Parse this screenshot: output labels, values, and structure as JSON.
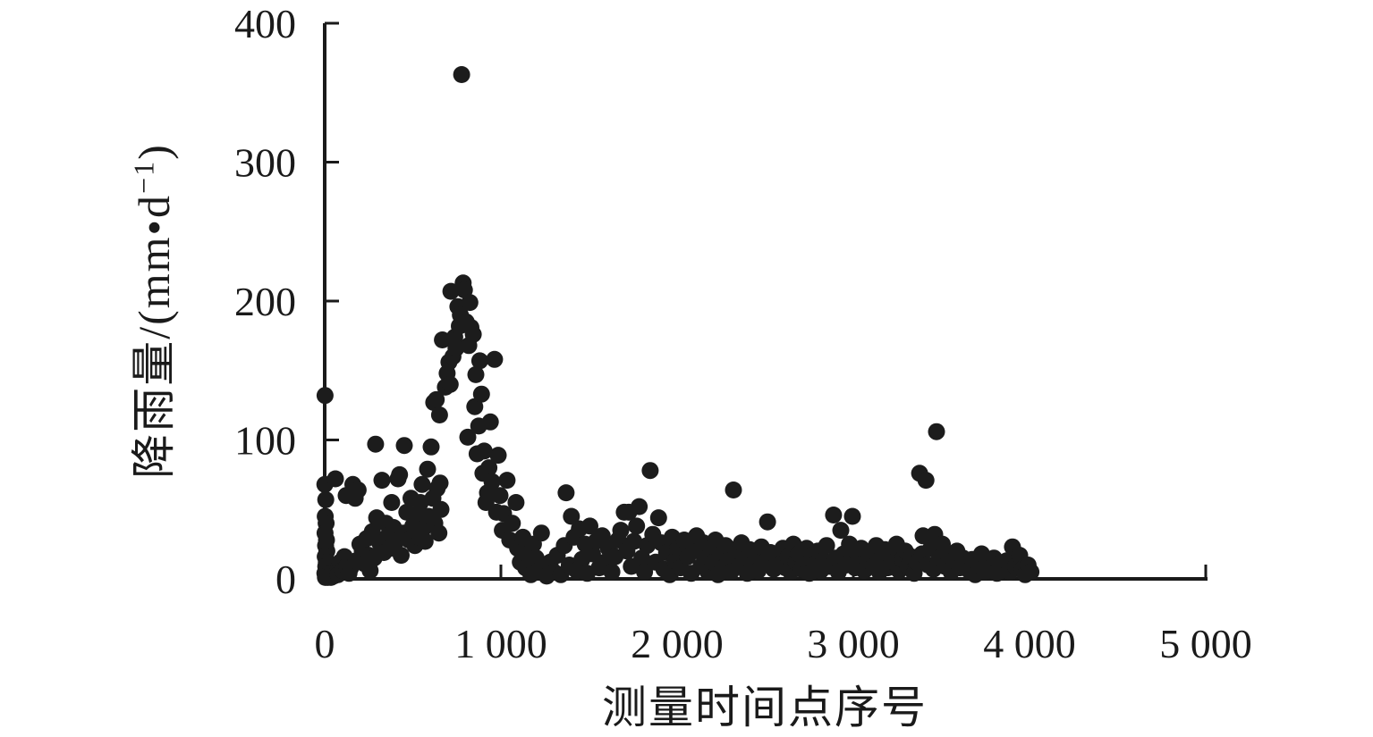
{
  "figure": {
    "background_color": "#ffffff",
    "axis_color": "#1a1a1a",
    "text_color": "#1a1a1a"
  },
  "chart_data": {
    "type": "scatter",
    "title": "",
    "xlabel": "测量时间点序号",
    "ylabel": "降雨量/(mm•d−1)",
    "ylabel_prefix": "降雨量/(mm•d",
    "ylabel_superscript": "−1",
    "ylabel_suffix": ")",
    "xlim": [
      0,
      5000
    ],
    "ylim": [
      0,
      400
    ],
    "grid": false,
    "legend_position": "none",
    "marker": {
      "shape": "circle",
      "radius_px": 9.5,
      "color": "#1c1c1c"
    },
    "x_ticks": [
      {
        "value": 0,
        "label": "0"
      },
      {
        "value": 1000,
        "label": "1 000"
      },
      {
        "value": 2000,
        "label": "2 000"
      },
      {
        "value": 3000,
        "label": "3 000"
      },
      {
        "value": 4000,
        "label": "4 000"
      },
      {
        "value": 5000,
        "label": "5 000"
      }
    ],
    "y_ticks": [
      {
        "value": 0,
        "label": "0"
      },
      {
        "value": 100,
        "label": "100"
      },
      {
        "value": 200,
        "label": "200"
      },
      {
        "value": 300,
        "label": "300"
      },
      {
        "value": 400,
        "label": "400"
      }
    ],
    "series": [
      {
        "name": "降雨量",
        "points": [
          [
            2,
            132
          ],
          [
            1,
            68
          ],
          [
            6,
            57
          ],
          [
            3,
            45
          ],
          [
            8,
            40
          ],
          [
            2,
            33
          ],
          [
            10,
            28
          ],
          [
            5,
            24
          ],
          [
            12,
            20
          ],
          [
            3,
            16
          ],
          [
            9,
            12
          ],
          [
            6,
            9
          ],
          [
            14,
            6
          ],
          [
            1,
            4
          ],
          [
            11,
            2
          ],
          [
            4,
            1
          ],
          [
            18,
            1
          ],
          [
            22,
            3
          ],
          [
            28,
            2
          ],
          [
            35,
            1
          ],
          [
            42,
            4
          ],
          [
            50,
            2
          ],
          [
            61,
            72
          ],
          [
            75,
            3
          ],
          [
            88,
            12
          ],
          [
            100,
            6
          ],
          [
            112,
            16
          ],
          [
            122,
            60
          ],
          [
            125,
            9
          ],
          [
            138,
            4
          ],
          [
            147,
            8
          ],
          [
            160,
            68
          ],
          [
            173,
            58
          ],
          [
            178,
            13
          ],
          [
            190,
            64
          ],
          [
            200,
            25
          ],
          [
            213,
            20
          ],
          [
            225,
            11
          ],
          [
            238,
            29
          ],
          [
            250,
            17
          ],
          [
            258,
            6
          ],
          [
            270,
            34
          ],
          [
            280,
            15
          ],
          [
            289,
            97
          ],
          [
            295,
            44
          ],
          [
            312,
            26
          ],
          [
            325,
            71
          ],
          [
            336,
            19
          ],
          [
            348,
            40
          ],
          [
            360,
            31
          ],
          [
            372,
            22
          ],
          [
            380,
            55
          ],
          [
            391,
            37
          ],
          [
            404,
            27
          ],
          [
            416,
            72
          ],
          [
            425,
            75
          ],
          [
            434,
            17
          ],
          [
            448,
            33
          ],
          [
            452,
            96
          ],
          [
            466,
            48
          ],
          [
            478,
            28
          ],
          [
            490,
            58
          ],
          [
            500,
            38
          ],
          [
            512,
            24
          ],
          [
            524,
            46
          ],
          [
            536,
            30
          ],
          [
            543,
            55
          ],
          [
            553,
            68
          ],
          [
            558,
            36
          ],
          [
            570,
            27
          ],
          [
            584,
            79
          ],
          [
            590,
            45
          ],
          [
            604,
            95
          ],
          [
            614,
            58
          ],
          [
            625,
            40
          ],
          [
            638,
            65
          ],
          [
            648,
            33
          ],
          [
            655,
            69
          ],
          [
            660,
            50
          ],
          [
            619,
            127
          ],
          [
            633,
            129
          ],
          [
            652,
            118
          ],
          [
            668,
            172
          ],
          [
            685,
            138
          ],
          [
            695,
            148
          ],
          [
            705,
            156
          ],
          [
            712,
            140
          ],
          [
            716,
            207
          ],
          [
            728,
            160
          ],
          [
            738,
            174
          ],
          [
            745,
            166
          ],
          [
            756,
            196
          ],
          [
            764,
            182
          ],
          [
            770,
            190
          ],
          [
            777,
            363
          ],
          [
            786,
            213
          ],
          [
            793,
            208
          ],
          [
            803,
            185
          ],
          [
            812,
            102
          ],
          [
            818,
            168
          ],
          [
            824,
            199
          ],
          [
            830,
            181
          ],
          [
            843,
            176
          ],
          [
            852,
            124
          ],
          [
            858,
            147
          ],
          [
            865,
            90
          ],
          [
            874,
            110
          ],
          [
            880,
            157
          ],
          [
            890,
            133
          ],
          [
            898,
            76
          ],
          [
            905,
            92
          ],
          [
            915,
            55
          ],
          [
            924,
            62
          ],
          [
            932,
            80
          ],
          [
            940,
            113
          ],
          [
            950,
            70
          ],
          [
            964,
            158
          ],
          [
            975,
            48
          ],
          [
            985,
            89
          ],
          [
            995,
            60
          ],
          [
            1008,
            35
          ],
          [
            1015,
            47
          ],
          [
            1035,
            71
          ],
          [
            1050,
            28
          ],
          [
            1065,
            40
          ],
          [
            1086,
            55
          ],
          [
            1095,
            22
          ],
          [
            1110,
            12
          ],
          [
            1125,
            30
          ],
          [
            1140,
            8
          ],
          [
            1155,
            18
          ],
          [
            1170,
            3
          ],
          [
            1185,
            25
          ],
          [
            1200,
            15
          ],
          [
            1215,
            6
          ],
          [
            1230,
            33
          ],
          [
            1245,
            10
          ],
          [
            1260,
            2
          ],
          [
            1280,
            12
          ],
          [
            1300,
            5
          ],
          [
            1320,
            17
          ],
          [
            1340,
            3
          ],
          [
            1360,
            24
          ],
          [
            1370,
            62
          ],
          [
            1388,
            10
          ],
          [
            1400,
            45
          ],
          [
            1415,
            30
          ],
          [
            1430,
            6
          ],
          [
            1445,
            36
          ],
          [
            1460,
            14
          ],
          [
            1478,
            25
          ],
          [
            1490,
            4
          ],
          [
            1505,
            38
          ],
          [
            1520,
            18
          ],
          [
            1540,
            27
          ],
          [
            1558,
            8
          ],
          [
            1575,
            31
          ],
          [
            1590,
            12
          ],
          [
            1610,
            22
          ],
          [
            1630,
            5
          ],
          [
            1648,
            16
          ],
          [
            1665,
            28
          ],
          [
            1680,
            35
          ],
          [
            1700,
            48
          ],
          [
            1715,
            20
          ],
          [
            1726,
            48
          ],
          [
            1740,
            9
          ],
          [
            1755,
            27
          ],
          [
            1770,
            38
          ],
          [
            1785,
            52
          ],
          [
            1800,
            15
          ],
          [
            1815,
            5
          ],
          [
            1830,
            24
          ],
          [
            1847,
            78
          ],
          [
            1862,
            32
          ],
          [
            1878,
            12
          ],
          [
            1895,
            44
          ],
          [
            1910,
            26
          ],
          [
            1925,
            7
          ],
          [
            1940,
            19
          ],
          [
            1958,
            3
          ],
          [
            1972,
            30
          ],
          [
            1988,
            13
          ],
          [
            2005,
            22
          ],
          [
            2020,
            8
          ],
          [
            2040,
            28
          ],
          [
            2060,
            16
          ],
          [
            2080,
            4
          ],
          [
            2095,
            21
          ],
          [
            2110,
            31
          ],
          [
            2122,
            20
          ],
          [
            2135,
            9
          ],
          [
            2150,
            26
          ],
          [
            2162,
            14
          ],
          [
            2175,
            5
          ],
          [
            2190,
            22
          ],
          [
            2205,
            12
          ],
          [
            2218,
            28
          ],
          [
            2232,
            3
          ],
          [
            2245,
            17
          ],
          [
            2260,
            8
          ],
          [
            2275,
            24
          ],
          [
            2290,
            13
          ],
          [
            2305,
            5
          ],
          [
            2320,
            64
          ],
          [
            2335,
            18
          ],
          [
            2350,
            9
          ],
          [
            2365,
            26
          ],
          [
            2380,
            14
          ],
          [
            2398,
            4
          ],
          [
            2412,
            21
          ],
          [
            2428,
            10
          ],
          [
            2445,
            16
          ],
          [
            2460,
            6
          ],
          [
            2478,
            23
          ],
          [
            2495,
            12
          ],
          [
            2513,
            41
          ],
          [
            2530,
            19
          ],
          [
            2548,
            7
          ],
          [
            2565,
            15
          ],
          [
            2582,
            10
          ],
          [
            2600,
            22
          ],
          [
            2615,
            8
          ],
          [
            2630,
            16
          ],
          [
            2645,
            5
          ],
          [
            2660,
            25
          ],
          [
            2675,
            12
          ],
          [
            2690,
            18
          ],
          [
            2705,
            7
          ],
          [
            2720,
            14
          ],
          [
            2735,
            22
          ],
          [
            2750,
            4
          ],
          [
            2765,
            17
          ],
          [
            2780,
            10
          ],
          [
            2798,
            20
          ],
          [
            2815,
            6
          ],
          [
            2830,
            13
          ],
          [
            2848,
            24
          ],
          [
            2865,
            9
          ],
          [
            2888,
            46
          ],
          [
            2900,
            15
          ],
          [
            2915,
            5
          ],
          [
            2929,
            35
          ],
          [
            2945,
            18
          ],
          [
            2960,
            10
          ],
          [
            2978,
            25
          ],
          [
            2995,
            45
          ],
          [
            3010,
            8
          ],
          [
            3028,
            16
          ],
          [
            3045,
            22
          ],
          [
            3062,
            6
          ],
          [
            3080,
            13
          ],
          [
            3098,
            18
          ],
          [
            3115,
            9
          ],
          [
            3130,
            24
          ],
          [
            3148,
            5
          ],
          [
            3162,
            15
          ],
          [
            3180,
            21
          ],
          [
            3195,
            8
          ],
          [
            3210,
            17
          ],
          [
            3228,
            12
          ],
          [
            3245,
            25
          ],
          [
            3260,
            6
          ],
          [
            3278,
            14
          ],
          [
            3295,
            20
          ],
          [
            3310,
            9
          ],
          [
            3328,
            16
          ],
          [
            3345,
            4
          ],
          [
            3360,
            12
          ],
          [
            3376,
            76
          ],
          [
            3390,
            18
          ],
          [
            3396,
            31
          ],
          [
            3412,
            71
          ],
          [
            3425,
            10
          ],
          [
            3440,
            22
          ],
          [
            3455,
            7
          ],
          [
            3462,
            32
          ],
          [
            3472,
            106
          ],
          [
            3488,
            15
          ],
          [
            3505,
            25
          ],
          [
            3520,
            9
          ],
          [
            3538,
            17
          ],
          [
            3555,
            5
          ],
          [
            3570,
            13
          ],
          [
            3588,
            20
          ],
          [
            3605,
            8
          ],
          [
            3622,
            15
          ],
          [
            3640,
            10
          ],
          [
            3658,
            6
          ],
          [
            3675,
            14
          ],
          [
            3692,
            3
          ],
          [
            3710,
            10
          ],
          [
            3728,
            18
          ],
          [
            3745,
            5
          ],
          [
            3762,
            12
          ],
          [
            3780,
            8
          ],
          [
            3798,
            15
          ],
          [
            3815,
            4
          ],
          [
            3832,
            11
          ],
          [
            3850,
            7
          ],
          [
            3870,
            13
          ],
          [
            3890,
            5
          ],
          [
            3903,
            23
          ],
          [
            3920,
            9
          ],
          [
            3944,
            17
          ],
          [
            3959,
            7
          ],
          [
            3975,
            3
          ],
          [
            3992,
            10
          ],
          [
            4008,
            5
          ]
        ]
      }
    ]
  }
}
